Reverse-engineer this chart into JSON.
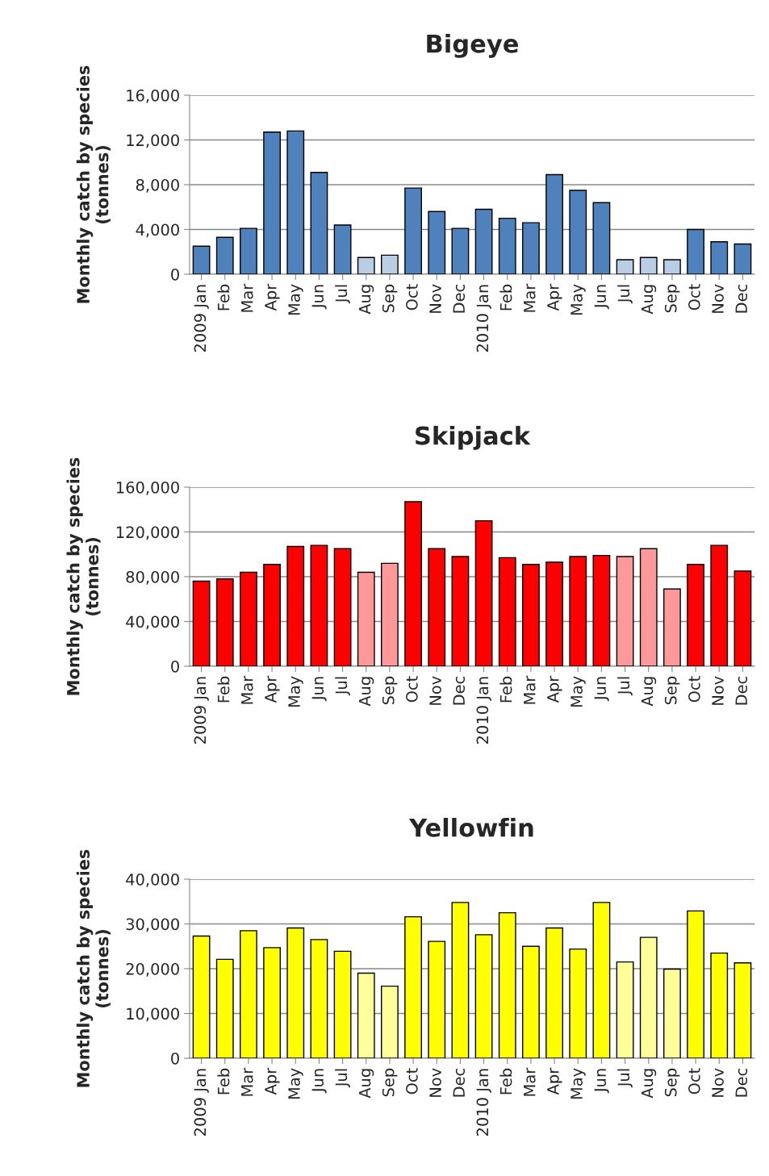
{
  "chart_data": [
    {
      "type": "bar",
      "title": "Bigeye",
      "ylabel": "Monthly catch by species\n(tonnes)",
      "categories": [
        "2009 Jan",
        "Feb",
        "Mar",
        "Apr",
        "May",
        "Jun",
        "Jul",
        "Aug",
        "Sep",
        "Oct",
        "Nov",
        "Dec",
        "2010 Jan",
        "Feb",
        "Mar",
        "Apr",
        "May",
        "Jun",
        "Jul",
        "Aug",
        "Sep",
        "Oct",
        "Nov",
        "Dec"
      ],
      "values": [
        2500,
        3300,
        4100,
        12700,
        12800,
        9100,
        4400,
        1500,
        1700,
        7700,
        5600,
        4100,
        5800,
        5000,
        4600,
        8900,
        7500,
        6400,
        1300,
        1500,
        1300,
        4000,
        2900,
        2700
      ],
      "colors": [
        "#4f81bd",
        "#4f81bd",
        "#4f81bd",
        "#4f81bd",
        "#4f81bd",
        "#4f81bd",
        "#4f81bd",
        "#b9cde5",
        "#b9cde5",
        "#4f81bd",
        "#4f81bd",
        "#4f81bd",
        "#4f81bd",
        "#4f81bd",
        "#4f81bd",
        "#4f81bd",
        "#4f81bd",
        "#4f81bd",
        "#b9cde5",
        "#b9cde5",
        "#b9cde5",
        "#4f81bd",
        "#4f81bd",
        "#4f81bd"
      ],
      "ylim": [
        0,
        16000
      ],
      "yticks": [
        {
          "value": 0,
          "label": "0"
        },
        {
          "value": 4000,
          "label": "4,000"
        },
        {
          "value": 8000,
          "label": "8,000"
        },
        {
          "value": 12000,
          "label": "12,000"
        },
        {
          "value": 16000,
          "label": "16,000"
        }
      ],
      "grid": "y",
      "legend": false
    },
    {
      "type": "bar",
      "title": "Skipjack",
      "ylabel": "Monthly catch by species\n(tonnes)",
      "categories": [
        "2009 Jan",
        "Feb",
        "Mar",
        "Apr",
        "May",
        "Jun",
        "Jul",
        "Aug",
        "Sep",
        "Oct",
        "Nov",
        "Dec",
        "2010 Jan",
        "Feb",
        "Mar",
        "Apr",
        "May",
        "Jun",
        "Jul",
        "Aug",
        "Sep",
        "Oct",
        "Nov",
        "Dec"
      ],
      "values": [
        76000,
        78000,
        84000,
        91000,
        107000,
        108000,
        105000,
        84000,
        92000,
        147000,
        105000,
        98000,
        130000,
        97000,
        91000,
        93000,
        98000,
        99000,
        98000,
        105000,
        69000,
        91000,
        108000,
        85000
      ],
      "colors": [
        "#ff0000",
        "#ff0000",
        "#ff0000",
        "#ff0000",
        "#ff0000",
        "#ff0000",
        "#ff0000",
        "#ff9999",
        "#ff9999",
        "#ff0000",
        "#ff0000",
        "#ff0000",
        "#ff0000",
        "#ff0000",
        "#ff0000",
        "#ff0000",
        "#ff0000",
        "#ff0000",
        "#ff9999",
        "#ff9999",
        "#ff9999",
        "#ff0000",
        "#ff0000",
        "#ff0000"
      ],
      "ylim": [
        0,
        160000
      ],
      "yticks": [
        {
          "value": 0,
          "label": "0"
        },
        {
          "value": 40000,
          "label": "40,000"
        },
        {
          "value": 80000,
          "label": "80,000"
        },
        {
          "value": 120000,
          "label": "120,000"
        },
        {
          "value": 160000,
          "label": "160,000"
        }
      ],
      "grid": "y",
      "legend": false
    },
    {
      "type": "bar",
      "title": "Yellowfin",
      "ylabel": "Monthly catch by species\n(tonnes)",
      "categories": [
        "2009 Jan",
        "Feb",
        "Mar",
        "Apr",
        "May",
        "Jun",
        "Jul",
        "Aug",
        "Sep",
        "Oct",
        "Nov",
        "Dec",
        "2010 Jan",
        "Feb",
        "Mar",
        "Apr",
        "May",
        "Jun",
        "Jul",
        "Aug",
        "Sep",
        "Oct",
        "Nov",
        "Dec"
      ],
      "values": [
        27300,
        22100,
        28500,
        24700,
        29100,
        26500,
        23900,
        19000,
        16100,
        31600,
        26100,
        34800,
        27600,
        32500,
        25000,
        29100,
        24400,
        34800,
        21500,
        27000,
        19900,
        32900,
        23500,
        21300
      ],
      "colors": [
        "#ffff00",
        "#ffff00",
        "#ffff00",
        "#ffff00",
        "#ffff00",
        "#ffff00",
        "#ffff00",
        "#ffff99",
        "#ffff99",
        "#ffff00",
        "#ffff00",
        "#ffff00",
        "#ffff00",
        "#ffff00",
        "#ffff00",
        "#ffff00",
        "#ffff00",
        "#ffff00",
        "#ffff99",
        "#ffff99",
        "#ffff99",
        "#ffff00",
        "#ffff00",
        "#ffff00"
      ],
      "ylim": [
        0,
        40000
      ],
      "yticks": [
        {
          "value": 0,
          "label": "0"
        },
        {
          "value": 10000,
          "label": "10,000"
        },
        {
          "value": 20000,
          "label": "20,000"
        },
        {
          "value": 30000,
          "label": "30,000"
        },
        {
          "value": 40000,
          "label": "40,000"
        }
      ],
      "grid": "y",
      "legend": false
    }
  ]
}
